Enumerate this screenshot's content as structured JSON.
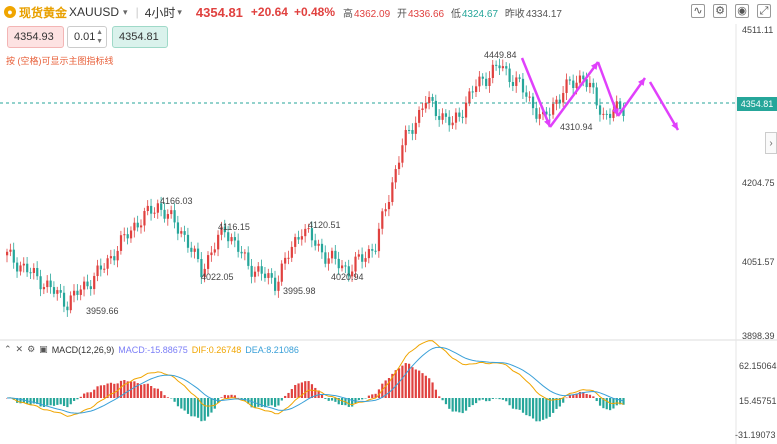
{
  "header": {
    "symbol_cn": "现货黄金",
    "symbol": "XAUUSD",
    "timeframe": "4小时",
    "price": "4354.81",
    "change": "+20.64",
    "change_pct": "+0.48%",
    "high_label": "高",
    "high": "4362.09",
    "open_label": "开",
    "open": "4336.66",
    "low_label": "低",
    "low": "4324.67",
    "prev_label": "昨收",
    "prev": "4334.17"
  },
  "order": {
    "sell": "4354.93",
    "qty": "0.01",
    "buy": "4354.81"
  },
  "hint": "按 (空格)可显示主图指标线",
  "icons": [
    "indicator-icon",
    "settings-icon",
    "camera-icon",
    "fullscreen-icon"
  ],
  "price_axis": {
    "labels": [
      "4511.11",
      "4354.81",
      "4204.75",
      "4051.57",
      "3898.39"
    ],
    "last": "4354.81"
  },
  "annotations": [
    "4449.84",
    "4310.94",
    "4166.03",
    "4116.15",
    "4120.51",
    "4022.05",
    "4020.94",
    "3995.98",
    "3959.66"
  ],
  "macd": {
    "label": "MACD(12,26,9)",
    "macd": "MACD:-15.88675",
    "dif": "DIF:0.26748",
    "dea": "DEA:8.21086",
    "axis": [
      "62.15064",
      "15.45751",
      "-31.19073"
    ]
  },
  "colors": {
    "up": "#e0413f",
    "down": "#26a69a",
    "arrow": "#e040fb",
    "dif": "#f0a500",
    "dea": "#3aa0d8"
  }
}
